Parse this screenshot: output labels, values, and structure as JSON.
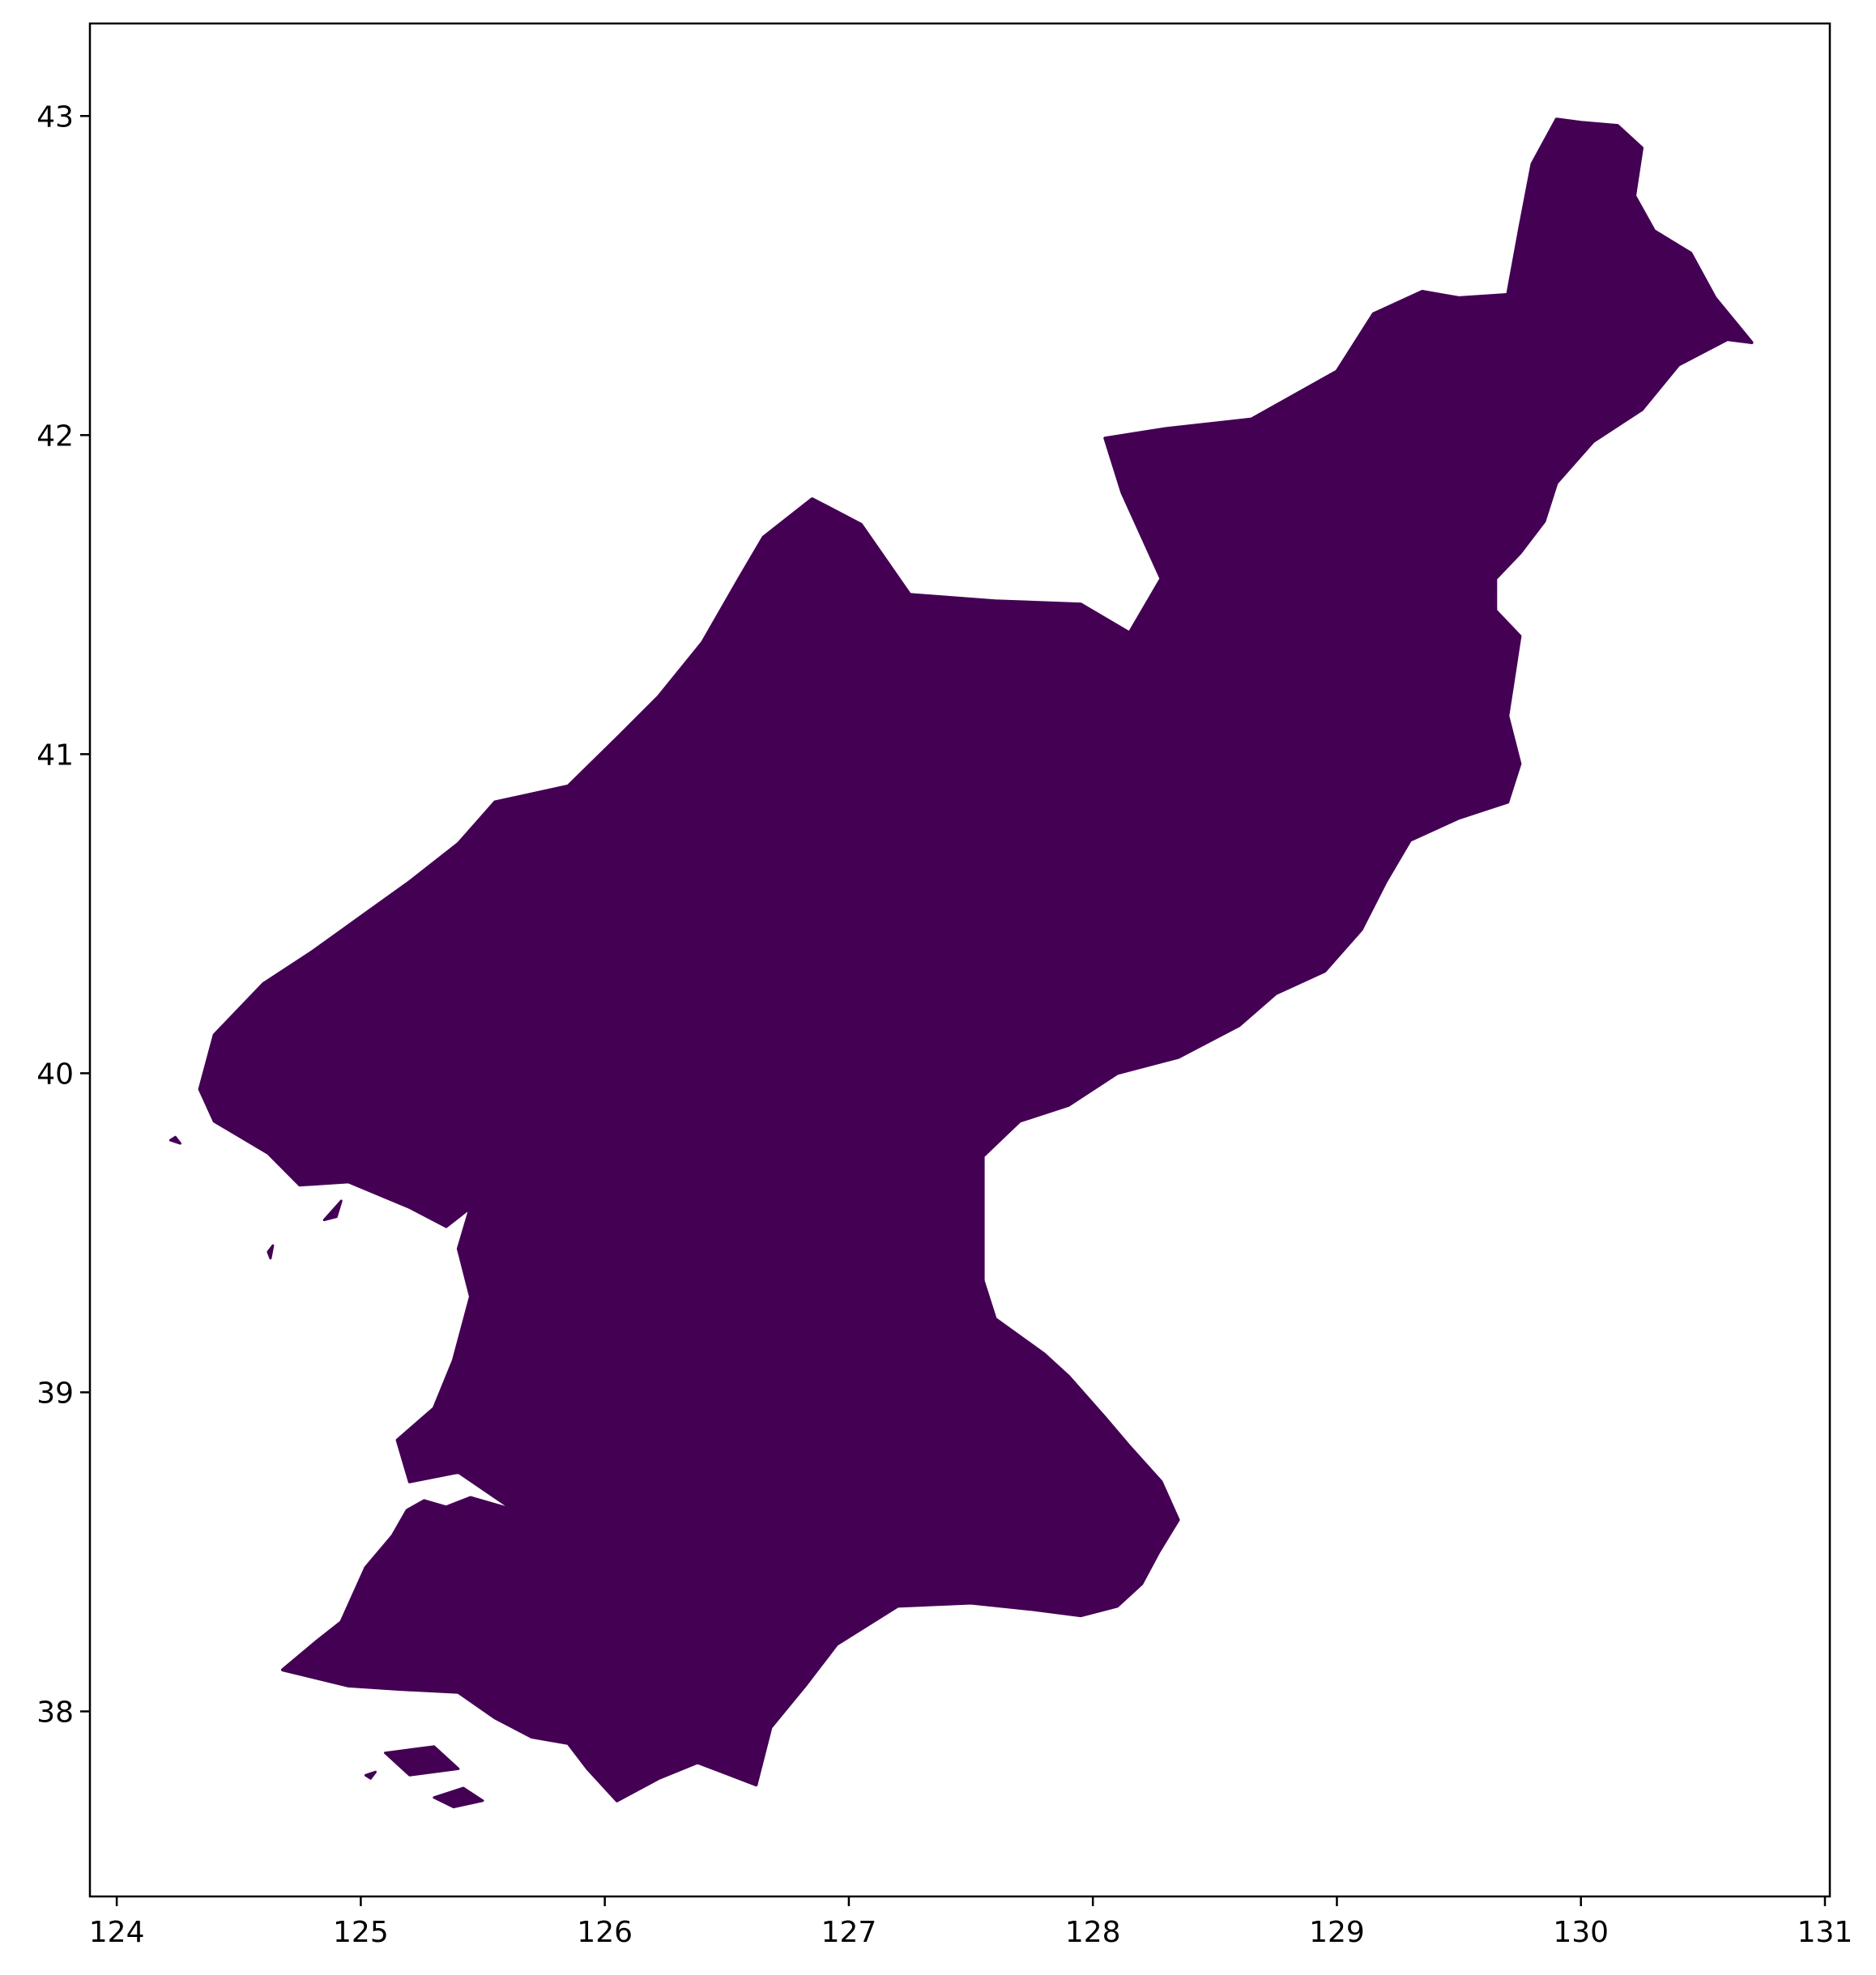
{
  "map": {
    "region_fill": "#440154",
    "background": "#ffffff",
    "frame_color": "#000000",
    "x_axis": {
      "range": [
        123.89,
        131.02
      ],
      "ticks": [
        124,
        125,
        126,
        127,
        128,
        129,
        130,
        131
      ]
    },
    "y_axis": {
      "range": [
        37.42,
        43.29
      ],
      "ticks": [
        38,
        39,
        40,
        41,
        42,
        43
      ]
    },
    "outline_lonlat": [
      [
        125.63,
        38.63
      ],
      [
        125.45,
        38.67
      ],
      [
        125.35,
        38.64
      ],
      [
        125.26,
        38.66
      ],
      [
        125.19,
        38.63
      ],
      [
        125.13,
        38.55
      ],
      [
        125.02,
        38.45
      ],
      [
        124.92,
        38.28
      ],
      [
        124.82,
        38.22
      ],
      [
        124.68,
        38.13
      ],
      [
        124.95,
        38.08
      ],
      [
        125.15,
        38.07
      ],
      [
        125.4,
        38.06
      ],
      [
        125.55,
        37.98
      ],
      [
        125.7,
        37.92
      ],
      [
        125.85,
        37.9
      ],
      [
        125.93,
        37.82
      ],
      [
        126.05,
        37.72
      ],
      [
        126.22,
        37.79
      ],
      [
        126.38,
        37.84
      ],
      [
        126.62,
        37.77
      ],
      [
        126.68,
        37.95
      ],
      [
        126.82,
        38.08
      ],
      [
        126.95,
        38.21
      ],
      [
        127.2,
        38.33
      ],
      [
        127.5,
        38.34
      ],
      [
        127.75,
        38.32
      ],
      [
        127.95,
        38.3
      ],
      [
        128.1,
        38.33
      ],
      [
        128.2,
        38.4
      ],
      [
        128.27,
        38.5
      ],
      [
        128.35,
        38.6
      ],
      [
        128.28,
        38.72
      ],
      [
        128.15,
        38.83
      ],
      [
        128.05,
        38.92
      ],
      [
        127.9,
        39.05
      ],
      [
        127.8,
        39.12
      ],
      [
        127.6,
        39.23
      ],
      [
        127.55,
        39.35
      ],
      [
        127.55,
        39.5
      ],
      [
        127.55,
        39.74
      ],
      [
        127.7,
        39.85
      ],
      [
        127.9,
        39.9
      ],
      [
        128.1,
        40.0
      ],
      [
        128.35,
        40.05
      ],
      [
        128.6,
        40.15
      ],
      [
        128.75,
        40.25
      ],
      [
        128.95,
        40.32
      ],
      [
        129.1,
        40.45
      ],
      [
        129.2,
        40.6
      ],
      [
        129.3,
        40.73
      ],
      [
        129.5,
        40.8
      ],
      [
        129.7,
        40.85
      ],
      [
        129.75,
        40.97
      ],
      [
        129.7,
        41.12
      ],
      [
        129.72,
        41.22
      ],
      [
        129.75,
        41.37
      ],
      [
        129.65,
        41.45
      ],
      [
        129.65,
        41.55
      ],
      [
        129.75,
        41.63
      ],
      [
        129.85,
        41.73
      ],
      [
        129.9,
        41.85
      ],
      [
        130.05,
        41.98
      ],
      [
        130.25,
        42.08
      ],
      [
        130.4,
        42.22
      ],
      [
        130.6,
        42.3
      ],
      [
        130.7,
        42.29
      ],
      [
        130.55,
        42.43
      ],
      [
        130.45,
        42.57
      ],
      [
        130.3,
        42.64
      ],
      [
        130.22,
        42.75
      ],
      [
        130.25,
        42.9
      ],
      [
        130.15,
        42.97
      ],
      [
        130.0,
        42.98
      ],
      [
        129.9,
        42.99
      ],
      [
        129.8,
        42.85
      ],
      [
        129.75,
        42.65
      ],
      [
        129.7,
        42.44
      ],
      [
        129.5,
        42.43
      ],
      [
        129.35,
        42.45
      ],
      [
        129.15,
        42.38
      ],
      [
        129.0,
        42.2
      ],
      [
        128.65,
        42.05
      ],
      [
        128.3,
        42.02
      ],
      [
        128.05,
        41.99
      ],
      [
        128.12,
        41.82
      ],
      [
        128.28,
        41.55
      ],
      [
        128.15,
        41.38
      ],
      [
        127.95,
        41.47
      ],
      [
        127.6,
        41.48
      ],
      [
        127.25,
        41.5
      ],
      [
        127.05,
        41.72
      ],
      [
        126.85,
        41.8
      ],
      [
        126.65,
        41.68
      ],
      [
        126.55,
        41.55
      ],
      [
        126.4,
        41.35
      ],
      [
        126.22,
        41.18
      ],
      [
        126.05,
        41.05
      ],
      [
        125.85,
        40.9
      ],
      [
        125.55,
        40.85
      ],
      [
        125.4,
        40.72
      ],
      [
        125.2,
        40.6
      ],
      [
        125.0,
        40.49
      ],
      [
        124.8,
        40.38
      ],
      [
        124.6,
        40.28
      ],
      [
        124.4,
        40.12
      ],
      [
        124.34,
        39.95
      ],
      [
        124.4,
        39.85
      ],
      [
        124.62,
        39.75
      ],
      [
        124.75,
        39.65
      ],
      [
        124.95,
        39.66
      ],
      [
        125.2,
        39.58
      ],
      [
        125.35,
        39.52
      ],
      [
        125.45,
        39.58
      ],
      [
        125.4,
        39.45
      ],
      [
        125.45,
        39.3
      ],
      [
        125.38,
        39.1
      ],
      [
        125.3,
        38.95
      ],
      [
        125.15,
        38.85
      ],
      [
        125.2,
        38.72
      ],
      [
        125.4,
        38.75
      ],
      [
        125.63,
        38.63
      ]
    ],
    "islands_lonlat": [
      [
        [
          124.24,
          39.8
        ],
        [
          124.26,
          39.78
        ],
        [
          124.22,
          39.79
        ]
      ],
      [
        [
          124.85,
          39.54
        ],
        [
          124.92,
          39.6
        ],
        [
          124.9,
          39.55
        ]
      ],
      [
        [
          124.62,
          39.44
        ],
        [
          124.64,
          39.46
        ],
        [
          124.63,
          39.42
        ]
      ],
      [
        [
          125.1,
          37.87
        ],
        [
          125.3,
          37.89
        ],
        [
          125.4,
          37.82
        ],
        [
          125.2,
          37.8
        ]
      ],
      [
        [
          125.3,
          37.73
        ],
        [
          125.42,
          37.76
        ],
        [
          125.5,
          37.72
        ],
        [
          125.38,
          37.7
        ]
      ],
      [
        [
          125.02,
          37.8
        ],
        [
          125.06,
          37.81
        ],
        [
          125.04,
          37.79
        ]
      ]
    ]
  }
}
